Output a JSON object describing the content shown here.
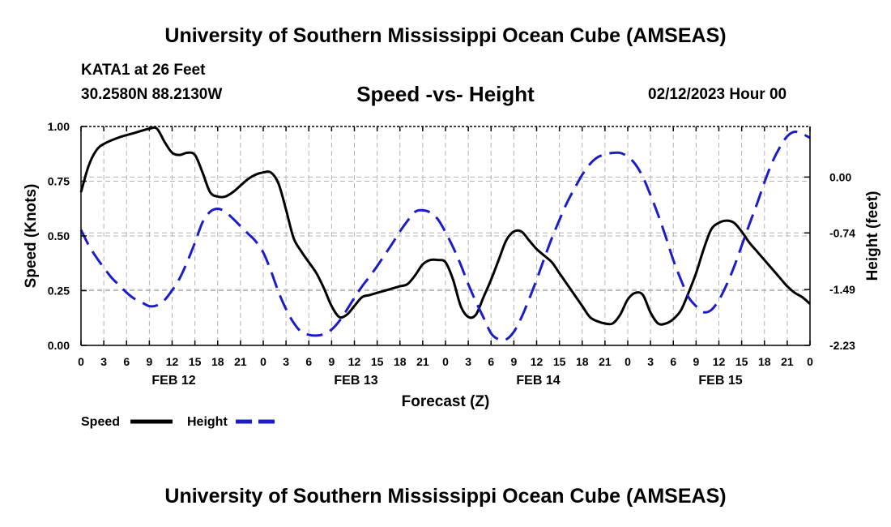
{
  "header": {
    "title": "University of Southern Mississippi Ocean Cube (AMSEAS)",
    "station": "KATA1 at 26 Feet",
    "coords": "30.2580N  88.2130W",
    "subtitle": "Speed -vs- Height",
    "datetime": "02/12/2023 Hour 00"
  },
  "footer": {
    "title": "University of Southern Mississippi Ocean Cube (AMSEAS)"
  },
  "chart_data": {
    "type": "line",
    "title": "Speed -vs- Height",
    "xlabel": "Forecast (Z)",
    "ylabel": "Speed (Knots)",
    "y2label": "Height (feet)",
    "xlim": [
      0,
      96
    ],
    "ylim": [
      0,
      1.0
    ],
    "y2lim": [
      -2.23,
      0.67
    ],
    "x_tick_labels": [
      "0",
      "3",
      "6",
      "9",
      "12",
      "15",
      "18",
      "21",
      "0",
      "3",
      "6",
      "9",
      "12",
      "15",
      "18",
      "21",
      "0",
      "3",
      "6",
      "9",
      "12",
      "15",
      "18",
      "21",
      "0",
      "3",
      "6",
      "9",
      "12",
      "15",
      "18",
      "21",
      "0"
    ],
    "date_labels": [
      {
        "hour": 12,
        "label": "FEB 12"
      },
      {
        "hour": 36,
        "label": "FEB 13"
      },
      {
        "hour": 60,
        "label": "FEB 14"
      },
      {
        "hour": 84,
        "label": "FEB 15"
      }
    ],
    "y_ticks": [
      {
        "value": 0.0,
        "label": "0.00"
      },
      {
        "value": 0.25,
        "label": "0.25"
      },
      {
        "value": 0.5,
        "label": "0.50"
      },
      {
        "value": 0.75,
        "label": "0.75"
      },
      {
        "value": 1.0,
        "label": "1.00"
      }
    ],
    "y2_ticks": [
      {
        "value": 0.0,
        "label": "0.00"
      },
      {
        "value": -0.74,
        "label": "-0.74"
      },
      {
        "value": -1.49,
        "label": "-1.49"
      },
      {
        "value": -2.23,
        "label": "-2.23"
      }
    ],
    "grid": true,
    "legend": [
      {
        "name": "Speed",
        "color": "#000000"
      },
      {
        "name": "Height",
        "color": "#1c1cc8"
      }
    ],
    "series": [
      {
        "name": "Speed",
        "axis": "left",
        "color": "#000000",
        "style": "solid",
        "x": [
          0,
          1,
          2,
          3,
          5,
          7,
          9,
          10,
          11,
          12,
          13,
          14,
          15,
          16,
          17,
          18,
          19,
          20,
          21,
          22,
          23,
          24,
          25,
          26,
          27,
          28,
          29,
          30,
          31,
          32,
          33,
          34,
          35,
          36,
          37,
          38,
          39,
          40,
          41,
          42,
          43,
          44,
          45,
          46,
          47,
          48,
          49,
          50,
          51,
          52,
          53,
          54,
          55,
          56,
          57,
          58,
          59,
          60,
          61,
          62,
          63,
          64,
          65,
          66,
          67,
          68,
          69,
          70,
          71,
          72,
          73,
          74,
          75,
          76,
          77,
          78,
          79,
          80,
          81,
          82,
          83,
          84,
          85,
          86,
          87,
          88,
          89,
          90,
          91,
          92,
          93,
          94,
          95,
          96
        ],
        "values": [
          0.7,
          0.82,
          0.89,
          0.92,
          0.95,
          0.97,
          0.99,
          0.99,
          0.93,
          0.88,
          0.87,
          0.88,
          0.87,
          0.79,
          0.7,
          0.68,
          0.68,
          0.7,
          0.73,
          0.76,
          0.78,
          0.79,
          0.79,
          0.74,
          0.62,
          0.49,
          0.43,
          0.38,
          0.33,
          0.26,
          0.18,
          0.13,
          0.14,
          0.18,
          0.22,
          0.23,
          0.24,
          0.25,
          0.26,
          0.27,
          0.28,
          0.32,
          0.37,
          0.39,
          0.39,
          0.38,
          0.3,
          0.18,
          0.13,
          0.14,
          0.22,
          0.3,
          0.39,
          0.48,
          0.52,
          0.52,
          0.48,
          0.44,
          0.41,
          0.38,
          0.33,
          0.28,
          0.23,
          0.18,
          0.13,
          0.11,
          0.1,
          0.1,
          0.14,
          0.21,
          0.24,
          0.23,
          0.15,
          0.1,
          0.1,
          0.12,
          0.16,
          0.24,
          0.33,
          0.44,
          0.53,
          0.56,
          0.57,
          0.56,
          0.52,
          0.47,
          0.43,
          0.39,
          0.35,
          0.31,
          0.27,
          0.24,
          0.22,
          0.19
        ]
      },
      {
        "name": "Height",
        "axis": "right",
        "color": "#1c1cc8",
        "style": "dashed",
        "x": [
          0,
          1,
          2,
          3,
          4,
          5,
          6,
          7,
          8,
          9,
          10,
          11,
          12,
          13,
          14,
          15,
          16,
          17,
          18,
          19,
          20,
          21,
          22,
          23,
          24,
          25,
          26,
          27,
          28,
          29,
          30,
          31,
          32,
          33,
          34,
          35,
          36,
          37,
          38,
          39,
          40,
          41,
          42,
          43,
          44,
          45,
          46,
          47,
          48,
          49,
          50,
          51,
          52,
          53,
          54,
          55,
          56,
          57,
          58,
          59,
          60,
          61,
          62,
          63,
          64,
          65,
          66,
          67,
          68,
          69,
          70,
          71,
          72,
          73,
          74,
          75,
          76,
          77,
          78,
          79,
          80,
          81,
          82,
          83,
          84,
          85,
          86,
          87,
          88,
          89,
          90,
          91,
          92,
          93,
          94,
          95,
          96
        ],
        "values": [
          -0.7,
          -0.9,
          -1.06,
          -1.2,
          -1.33,
          -1.43,
          -1.53,
          -1.61,
          -1.66,
          -1.71,
          -1.7,
          -1.63,
          -1.5,
          -1.34,
          -1.12,
          -0.87,
          -0.6,
          -0.46,
          -0.42,
          -0.46,
          -0.55,
          -0.65,
          -0.75,
          -0.85,
          -1.0,
          -1.24,
          -1.52,
          -1.75,
          -1.93,
          -2.05,
          -2.09,
          -2.1,
          -2.08,
          -2.02,
          -1.91,
          -1.76,
          -1.6,
          -1.45,
          -1.32,
          -1.18,
          -1.03,
          -0.88,
          -0.72,
          -0.58,
          -0.46,
          -0.44,
          -0.47,
          -0.56,
          -0.73,
          -0.93,
          -1.16,
          -1.42,
          -1.65,
          -1.86,
          -2.07,
          -2.15,
          -2.15,
          -2.05,
          -1.86,
          -1.62,
          -1.36,
          -1.08,
          -0.81,
          -0.57,
          -0.34,
          -0.15,
          0.03,
          0.17,
          0.26,
          0.3,
          0.32,
          0.32,
          0.27,
          0.17,
          0.0,
          -0.24,
          -0.5,
          -0.79,
          -1.1,
          -1.36,
          -1.59,
          -1.71,
          -1.79,
          -1.76,
          -1.63,
          -1.43,
          -1.19,
          -0.91,
          -0.63,
          -0.36,
          -0.07,
          0.19,
          0.39,
          0.54,
          0.6,
          0.57,
          0.52
        ]
      }
    ]
  }
}
